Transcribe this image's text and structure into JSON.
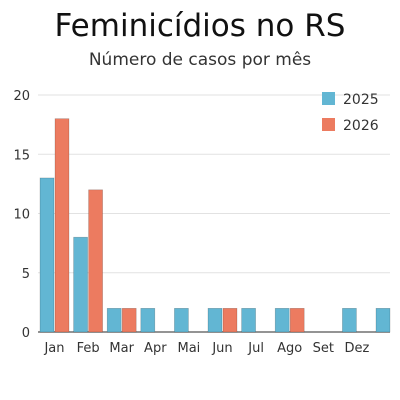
{
  "header": {
    "title": "Feminicídios no RS",
    "subtitle": "Número de casos por mês"
  },
  "chart_data": {
    "type": "bar",
    "title": "Feminicídios no RS",
    "subtitle": "Número de casos por mês",
    "categories": [
      "Jan",
      "Feb",
      "Mar",
      "Apr",
      "Mai",
      "Jun",
      "Jul",
      "Ago",
      "Set",
      "Dez"
    ],
    "series": [
      {
        "name": "2025",
        "color": "#62b6d3",
        "values": [
          13,
          8,
          2,
          2,
          2,
          2,
          2,
          2,
          0,
          2
        ]
      },
      {
        "name": "2026",
        "color": "#ec7b60",
        "values": [
          18,
          12,
          2,
          0,
          0,
          2,
          0,
          2,
          0,
          0
        ]
      }
    ],
    "extra_bar": {
      "series": "2025",
      "value": 2
    },
    "ylim": [
      0,
      20
    ],
    "yticks": [
      0,
      5,
      10,
      15,
      20
    ],
    "grid": true,
    "legend": "top-right"
  }
}
